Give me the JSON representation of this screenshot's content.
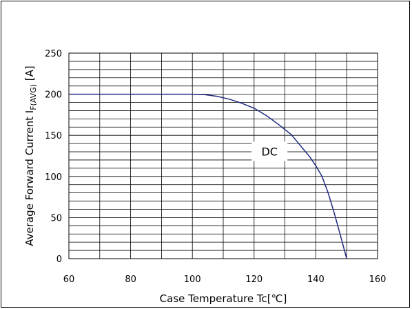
{
  "chart_data": {
    "type": "line",
    "title": "",
    "xlabel": "Case Temperature  Tc[℃]",
    "ylabel_main": "Average Forward Current I",
    "ylabel_sub": "F(AVG)",
    "ylabel_unit": " [A]",
    "xlim": [
      60,
      160
    ],
    "ylim": [
      0,
      250
    ],
    "x_ticks": [
      60,
      80,
      100,
      120,
      140,
      160
    ],
    "y_ticks": [
      0,
      50,
      100,
      150,
      200,
      250
    ],
    "x_minor_step": 10,
    "y_minor_step": 10,
    "grid": true,
    "series": [
      {
        "name": "DC",
        "color": "#1f2a80",
        "x": [
          60,
          100,
          104,
          108,
          112,
          116,
          120,
          124,
          128,
          132,
          134,
          136,
          138,
          140,
          142,
          144,
          146,
          148,
          150
        ],
        "y": [
          200,
          200,
          199.5,
          197.5,
          194,
          189,
          183,
          174,
          163,
          151,
          142,
          133,
          124,
          113,
          100,
          80,
          55,
          28,
          0
        ]
      }
    ],
    "annotations": [
      {
        "text": "DC",
        "x": 125,
        "y": 128
      }
    ]
  }
}
